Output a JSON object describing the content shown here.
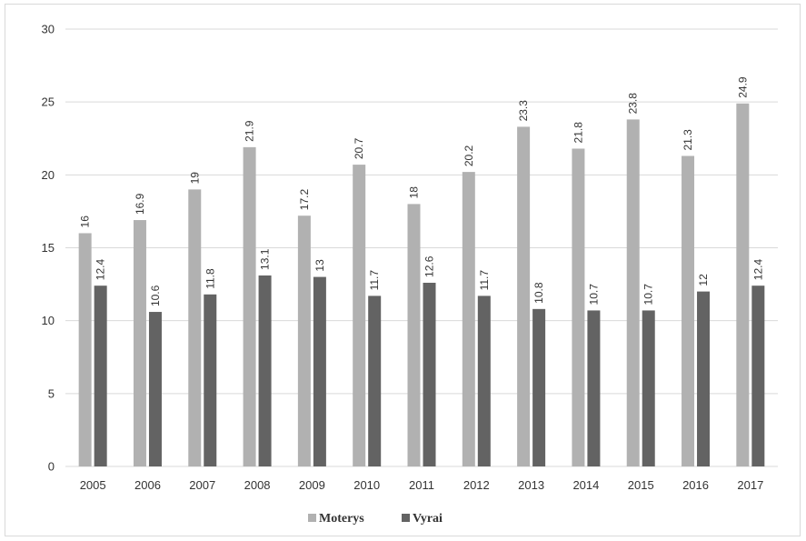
{
  "chart_data": {
    "type": "bar",
    "categories": [
      "2005",
      "2006",
      "2007",
      "2008",
      "2009",
      "2010",
      "2011",
      "2012",
      "2013",
      "2014",
      "2015",
      "2016",
      "2017"
    ],
    "series": [
      {
        "name": "Moterys",
        "color": "#b1b1b1",
        "values": [
          16,
          16.9,
          19,
          21.9,
          17.2,
          20.7,
          18,
          20.2,
          23.3,
          21.8,
          23.8,
          21.3,
          24.9
        ]
      },
      {
        "name": "Vyrai",
        "color": "#636363",
        "values": [
          12.4,
          10.6,
          11.8,
          13.1,
          13,
          11.7,
          12.6,
          11.7,
          10.8,
          10.7,
          10.7,
          12,
          12.4
        ]
      }
    ],
    "ylim": [
      0,
      30
    ],
    "yticks": [
      0,
      5,
      10,
      15,
      20,
      25,
      30
    ],
    "grid": true,
    "legend_position": "bottom",
    "data_labels": true
  }
}
